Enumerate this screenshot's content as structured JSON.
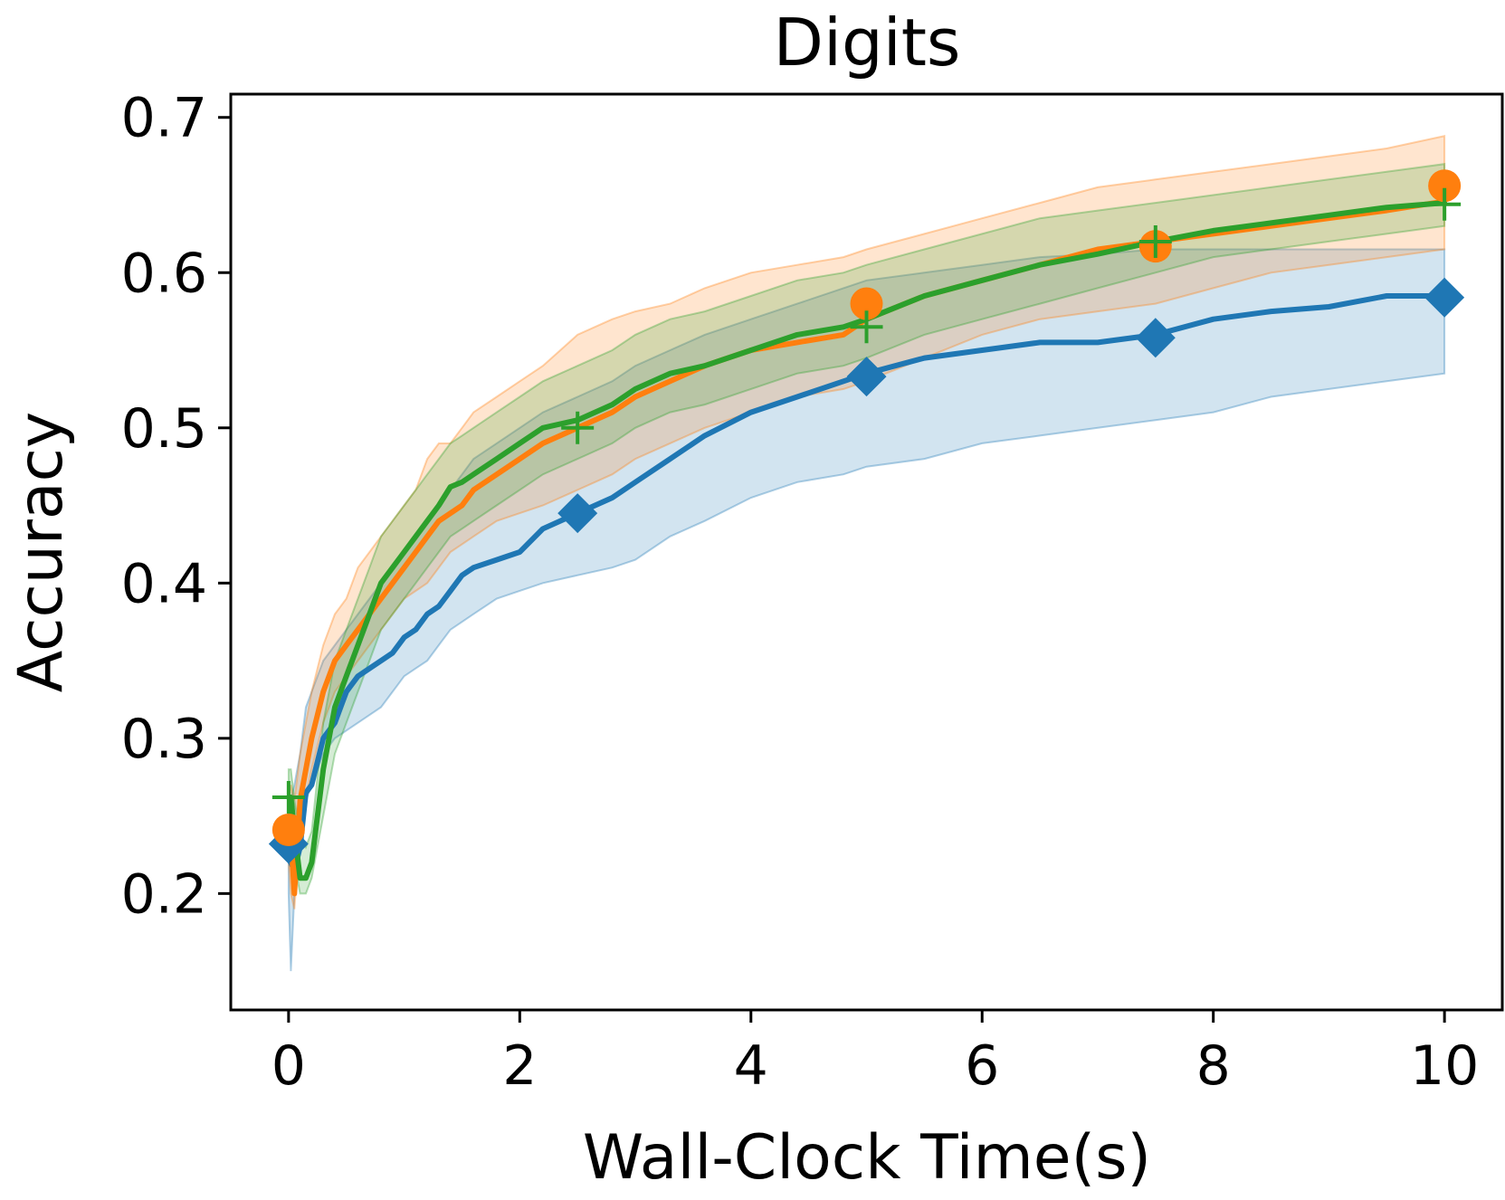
{
  "chart_data": {
    "type": "line",
    "title": "Digits",
    "xlabel": "Wall-Clock Time(s)",
    "ylabel": "Accuracy",
    "xlim": [
      -0.5,
      10.5
    ],
    "ylim": [
      0.125,
      0.715
    ],
    "xticks": [
      0,
      2,
      4,
      6,
      8,
      10
    ],
    "xtick_labels": [
      "0",
      "2",
      "4",
      "6",
      "8",
      "10"
    ],
    "yticks": [
      0.2,
      0.3,
      0.4,
      0.5,
      0.6,
      0.7
    ],
    "ytick_labels": [
      "0.2",
      "0.3",
      "0.4",
      "0.5",
      "0.6",
      "0.7"
    ],
    "grid": false,
    "legend": false,
    "series": [
      {
        "color": "#1f77b4",
        "marker": "diamond",
        "x": [
          0,
          0.02,
          0.05,
          0.1,
          0.15,
          0.2,
          0.3,
          0.4,
          0.5,
          0.6,
          0.7,
          0.8,
          0.9,
          1.0,
          1.1,
          1.2,
          1.3,
          1.4,
          1.5,
          1.6,
          1.8,
          2.0,
          2.2,
          2.5,
          2.8,
          3.0,
          3.3,
          3.6,
          4.0,
          4.4,
          4.8,
          5.0,
          5.5,
          6.0,
          6.5,
          7.0,
          7.5,
          8.0,
          8.5,
          9.0,
          9.5,
          10.0
        ],
        "y": [
          0.232,
          0.22,
          0.215,
          0.23,
          0.265,
          0.27,
          0.3,
          0.31,
          0.33,
          0.34,
          0.345,
          0.35,
          0.355,
          0.365,
          0.37,
          0.38,
          0.385,
          0.395,
          0.405,
          0.41,
          0.415,
          0.42,
          0.435,
          0.445,
          0.455,
          0.465,
          0.48,
          0.495,
          0.51,
          0.52,
          0.53,
          0.535,
          0.545,
          0.55,
          0.555,
          0.555,
          0.56,
          0.57,
          0.575,
          0.578,
          0.585,
          0.585
        ],
        "lower": [
          0.2,
          0.15,
          0.2,
          0.23,
          0.26,
          0.27,
          0.29,
          0.3,
          0.305,
          0.31,
          0.315,
          0.32,
          0.33,
          0.34,
          0.345,
          0.35,
          0.36,
          0.37,
          0.375,
          0.38,
          0.39,
          0.395,
          0.4,
          0.405,
          0.41,
          0.415,
          0.43,
          0.44,
          0.455,
          0.465,
          0.47,
          0.475,
          0.48,
          0.49,
          0.495,
          0.5,
          0.505,
          0.51,
          0.52,
          0.525,
          0.53,
          0.535
        ],
        "upper": [
          0.265,
          0.26,
          0.27,
          0.29,
          0.32,
          0.33,
          0.35,
          0.36,
          0.37,
          0.38,
          0.39,
          0.4,
          0.41,
          0.42,
          0.43,
          0.44,
          0.45,
          0.46,
          0.47,
          0.48,
          0.49,
          0.5,
          0.51,
          0.52,
          0.53,
          0.54,
          0.55,
          0.56,
          0.57,
          0.58,
          0.59,
          0.595,
          0.6,
          0.605,
          0.61,
          0.612,
          0.615,
          0.615,
          0.615,
          0.615,
          0.615,
          0.615
        ],
        "markers_x": [
          0,
          2.5,
          5.0,
          7.5,
          10.0
        ],
        "markers_y": [
          0.232,
          0.445,
          0.533,
          0.558,
          0.584
        ]
      },
      {
        "color": "#ff7f0e",
        "marker": "circle",
        "x": [
          0,
          0.02,
          0.05,
          0.1,
          0.15,
          0.2,
          0.3,
          0.4,
          0.5,
          0.6,
          0.7,
          0.8,
          0.9,
          1.0,
          1.1,
          1.2,
          1.3,
          1.4,
          1.5,
          1.6,
          1.8,
          2.0,
          2.2,
          2.5,
          2.8,
          3.0,
          3.3,
          3.6,
          4.0,
          4.4,
          4.8,
          5.0,
          5.5,
          6.0,
          6.5,
          7.0,
          7.5,
          8.0,
          8.5,
          9.0,
          9.5,
          10.0
        ],
        "y": [
          0.24,
          0.235,
          0.2,
          0.26,
          0.28,
          0.3,
          0.33,
          0.35,
          0.36,
          0.37,
          0.38,
          0.39,
          0.4,
          0.41,
          0.42,
          0.43,
          0.44,
          0.445,
          0.45,
          0.46,
          0.47,
          0.48,
          0.49,
          0.5,
          0.51,
          0.52,
          0.53,
          0.54,
          0.55,
          0.555,
          0.56,
          0.57,
          0.585,
          0.595,
          0.605,
          0.615,
          0.62,
          0.625,
          0.63,
          0.635,
          0.64,
          0.646
        ],
        "lower": [
          0.22,
          0.2,
          0.19,
          0.24,
          0.26,
          0.28,
          0.31,
          0.33,
          0.34,
          0.35,
          0.36,
          0.37,
          0.38,
          0.39,
          0.395,
          0.4,
          0.41,
          0.42,
          0.425,
          0.43,
          0.44,
          0.445,
          0.45,
          0.46,
          0.47,
          0.48,
          0.49,
          0.5,
          0.51,
          0.52,
          0.525,
          0.53,
          0.545,
          0.56,
          0.57,
          0.575,
          0.58,
          0.59,
          0.6,
          0.605,
          0.61,
          0.615
        ],
        "upper": [
          0.26,
          0.27,
          0.26,
          0.29,
          0.31,
          0.33,
          0.36,
          0.38,
          0.39,
          0.41,
          0.42,
          0.43,
          0.44,
          0.45,
          0.46,
          0.48,
          0.49,
          0.49,
          0.5,
          0.51,
          0.52,
          0.53,
          0.54,
          0.56,
          0.57,
          0.575,
          0.58,
          0.59,
          0.6,
          0.605,
          0.61,
          0.615,
          0.625,
          0.635,
          0.645,
          0.655,
          0.66,
          0.665,
          0.67,
          0.675,
          0.68,
          0.688
        ],
        "markers_x": [
          0,
          5.0,
          7.5,
          10.0
        ],
        "markers_y": [
          0.241,
          0.58,
          0.617,
          0.656
        ]
      },
      {
        "color": "#2ca02c",
        "marker": "plus",
        "x": [
          0,
          0.02,
          0.05,
          0.1,
          0.15,
          0.2,
          0.3,
          0.4,
          0.5,
          0.6,
          0.7,
          0.8,
          0.9,
          1.0,
          1.1,
          1.2,
          1.3,
          1.4,
          1.5,
          1.6,
          1.8,
          2.0,
          2.2,
          2.5,
          2.8,
          3.0,
          3.3,
          3.6,
          4.0,
          4.4,
          4.8,
          5.0,
          5.5,
          6.0,
          6.5,
          7.0,
          7.5,
          8.0,
          8.5,
          9.0,
          9.5,
          10.0
        ],
        "y": [
          0.262,
          0.262,
          0.24,
          0.21,
          0.21,
          0.22,
          0.28,
          0.32,
          0.34,
          0.36,
          0.38,
          0.4,
          0.41,
          0.42,
          0.43,
          0.44,
          0.45,
          0.462,
          0.465,
          0.47,
          0.48,
          0.49,
          0.5,
          0.505,
          0.515,
          0.525,
          0.535,
          0.54,
          0.55,
          0.56,
          0.565,
          0.57,
          0.585,
          0.595,
          0.605,
          0.612,
          0.62,
          0.627,
          0.632,
          0.637,
          0.642,
          0.645
        ],
        "lower": [
          0.24,
          0.23,
          0.22,
          0.2,
          0.2,
          0.21,
          0.25,
          0.29,
          0.31,
          0.33,
          0.35,
          0.37,
          0.38,
          0.39,
          0.4,
          0.41,
          0.42,
          0.43,
          0.435,
          0.44,
          0.45,
          0.46,
          0.47,
          0.48,
          0.49,
          0.5,
          0.51,
          0.515,
          0.525,
          0.535,
          0.54,
          0.545,
          0.56,
          0.57,
          0.58,
          0.59,
          0.6,
          0.61,
          0.615,
          0.62,
          0.625,
          0.63
        ],
        "upper": [
          0.28,
          0.28,
          0.26,
          0.24,
          0.23,
          0.24,
          0.31,
          0.35,
          0.37,
          0.39,
          0.41,
          0.43,
          0.44,
          0.45,
          0.46,
          0.47,
          0.48,
          0.49,
          0.495,
          0.5,
          0.51,
          0.52,
          0.53,
          0.54,
          0.55,
          0.56,
          0.57,
          0.575,
          0.585,
          0.595,
          0.6,
          0.605,
          0.615,
          0.625,
          0.635,
          0.64,
          0.645,
          0.65,
          0.655,
          0.66,
          0.665,
          0.67
        ],
        "markers_x": [
          0,
          2.5,
          5.0,
          7.5,
          10.0
        ],
        "markers_y": [
          0.262,
          0.5,
          0.565,
          0.62,
          0.644
        ]
      }
    ]
  }
}
